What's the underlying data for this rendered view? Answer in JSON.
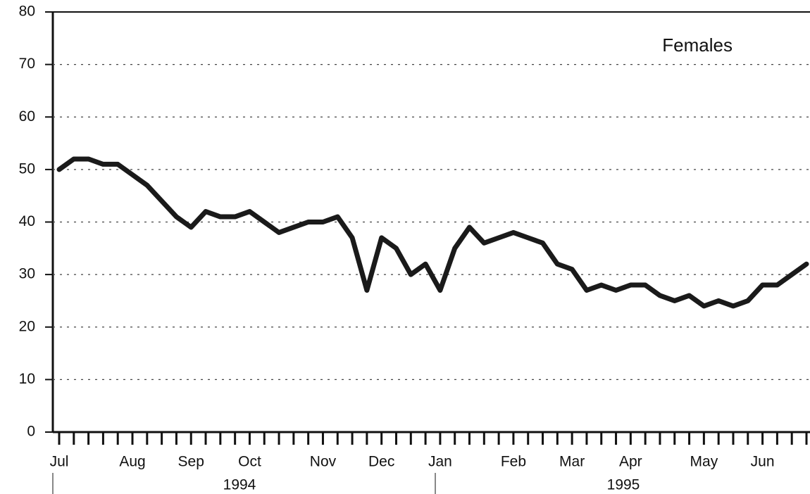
{
  "chart_data": {
    "type": "line",
    "categories": [
      "Jul",
      null,
      null,
      null,
      null,
      "Aug",
      null,
      null,
      null,
      "Sep",
      null,
      null,
      null,
      "Oct",
      null,
      null,
      null,
      null,
      "Nov",
      null,
      null,
      null,
      "Dec",
      null,
      null,
      null,
      "Jan",
      null,
      null,
      null,
      null,
      "Feb",
      null,
      null,
      null,
      "Mar",
      null,
      null,
      null,
      "Apr",
      null,
      null,
      null,
      null,
      "May",
      null,
      null,
      null,
      "Jun",
      null,
      null,
      null
    ],
    "series": [
      {
        "name": "Females",
        "color": "#1a1a1a",
        "values": [
          50,
          52,
          52,
          51,
          51,
          49,
          47,
          44,
          41,
          39,
          42,
          41,
          41,
          42,
          40,
          38,
          39,
          40,
          40,
          41,
          37,
          27,
          37,
          35,
          30,
          32,
          27,
          35,
          39,
          36,
          37,
          38,
          37,
          36,
          32,
          31,
          27,
          28,
          27,
          28,
          28,
          26,
          25,
          26,
          24,
          25,
          24,
          25,
          28,
          28,
          30,
          32
        ]
      }
    ],
    "annotations": [
      "1994",
      "1995"
    ],
    "ylim": [
      0,
      80
    ],
    "yticks": [
      0,
      10,
      20,
      30,
      40,
      50,
      60,
      70,
      80
    ],
    "grid": true
  }
}
